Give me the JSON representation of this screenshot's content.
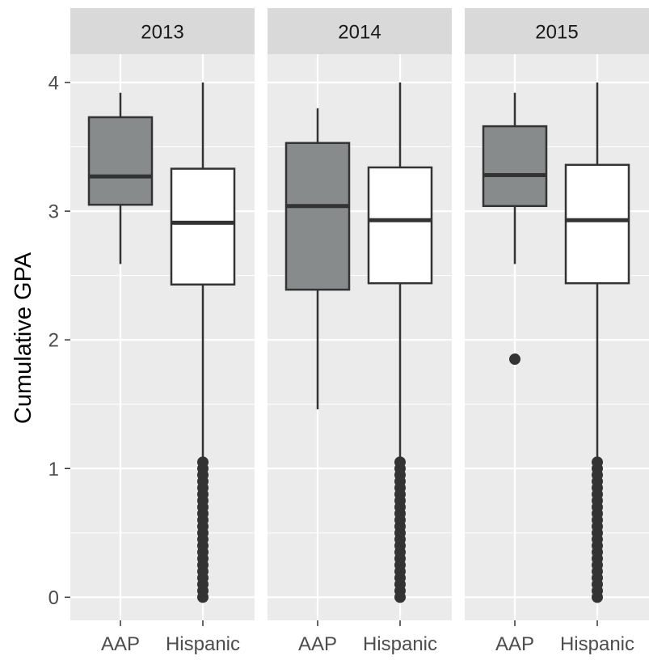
{
  "chart_data": {
    "type": "boxplot",
    "title": "",
    "xlabel": "",
    "ylabel": "Cumulative GPA",
    "ylim": [
      -0.18,
      4.22
    ],
    "y_ticks": [
      0,
      1,
      2,
      3,
      4
    ],
    "grid": true,
    "legend": "none",
    "categories": [
      "AAP",
      "Hispanic"
    ],
    "colors": {
      "AAP": "#878b8c",
      "Hispanic": "#ffffff",
      "panel": "#ebebeb",
      "strip": "#d9d9d9",
      "grid": "#ffffff",
      "line": "#333333"
    },
    "panels": [
      {
        "facet": "2013",
        "boxes": [
          {
            "group": "AAP",
            "lower_whisker": 2.59,
            "q1": 3.05,
            "median": 3.27,
            "q3": 3.73,
            "upper_whisker": 3.92,
            "outliers": []
          },
          {
            "group": "Hispanic",
            "lower_whisker": 1.07,
            "q1": 2.43,
            "median": 2.91,
            "q3": 3.33,
            "upper_whisker": 4.0,
            "outliers": [
              0,
              0.05,
              0.1,
              0.15,
              0.2,
              0.25,
              0.3,
              0.35,
              0.4,
              0.45,
              0.5,
              0.55,
              0.6,
              0.65,
              0.7,
              0.75,
              0.8,
              0.85,
              0.9,
              0.95,
              1.0,
              1.05
            ]
          }
        ]
      },
      {
        "facet": "2014",
        "boxes": [
          {
            "group": "AAP",
            "lower_whisker": 1.46,
            "q1": 2.39,
            "median": 3.04,
            "q3": 3.53,
            "upper_whisker": 3.8,
            "outliers": []
          },
          {
            "group": "Hispanic",
            "lower_whisker": 1.07,
            "q1": 2.44,
            "median": 2.93,
            "q3": 3.34,
            "upper_whisker": 4.0,
            "outliers": [
              0,
              0.05,
              0.1,
              0.15,
              0.2,
              0.25,
              0.3,
              0.35,
              0.4,
              0.45,
              0.5,
              0.55,
              0.6,
              0.65,
              0.7,
              0.75,
              0.8,
              0.85,
              0.9,
              0.95,
              1.0,
              1.05
            ]
          }
        ]
      },
      {
        "facet": "2015",
        "boxes": [
          {
            "group": "AAP",
            "lower_whisker": 2.59,
            "q1": 3.04,
            "median": 3.28,
            "q3": 3.66,
            "upper_whisker": 3.92,
            "outliers": [
              1.85
            ]
          },
          {
            "group": "Hispanic",
            "lower_whisker": 1.07,
            "q1": 2.44,
            "median": 2.93,
            "q3": 3.36,
            "upper_whisker": 4.0,
            "outliers": [
              0,
              0.05,
              0.1,
              0.15,
              0.2,
              0.25,
              0.3,
              0.35,
              0.4,
              0.45,
              0.5,
              0.55,
              0.6,
              0.65,
              0.7,
              0.75,
              0.8,
              0.85,
              0.9,
              0.95,
              1.0,
              1.05
            ]
          }
        ]
      }
    ]
  }
}
